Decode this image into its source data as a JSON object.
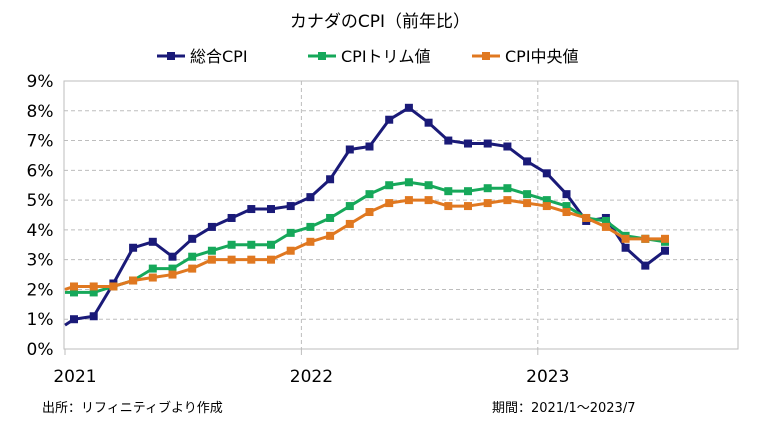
{
  "chart_data": {
    "type": "line",
    "title": "カナダのCPI（前年比）",
    "y_axis": {
      "min": 0,
      "max": 9,
      "step": 1,
      "tick_labels": [
        "0%",
        "1%",
        "2%",
        "3%",
        "4%",
        "5%",
        "6%",
        "7%",
        "8%",
        "9%"
      ]
    },
    "x_axis": {
      "tick_labels": [
        "2021",
        "2022",
        "2023"
      ]
    },
    "grid": true,
    "legend_position": "top",
    "months": [
      "2021/1",
      "2021/2",
      "2021/3",
      "2021/4",
      "2021/5",
      "2021/6",
      "2021/7",
      "2021/8",
      "2021/9",
      "2021/10",
      "2021/11",
      "2021/12",
      "2022/1",
      "2022/2",
      "2022/3",
      "2022/4",
      "2022/5",
      "2022/6",
      "2022/7",
      "2022/8",
      "2022/9",
      "2022/10",
      "2022/11",
      "2022/12",
      "2023/1",
      "2023/2",
      "2023/3",
      "2023/4",
      "2023/5",
      "2023/6",
      "2023/7"
    ],
    "series": [
      {
        "name": "総合CPI",
        "color": "#1a1a78",
        "marker": "square",
        "values": [
          1.0,
          1.1,
          2.2,
          3.4,
          3.6,
          3.1,
          3.7,
          4.1,
          4.4,
          4.7,
          4.7,
          4.8,
          5.1,
          5.7,
          6.7,
          6.8,
          7.7,
          8.1,
          7.6,
          7.0,
          6.9,
          6.9,
          6.8,
          6.3,
          5.9,
          5.2,
          4.3,
          4.4,
          3.4,
          2.8,
          3.3
        ],
        "start_value": 0.8
      },
      {
        "name": "CPIトリム値",
        "color": "#16a85a",
        "marker": "square",
        "values": [
          1.9,
          1.9,
          2.1,
          2.3,
          2.7,
          2.7,
          3.1,
          3.3,
          3.5,
          3.5,
          3.5,
          3.9,
          4.1,
          4.4,
          4.8,
          5.2,
          5.5,
          5.6,
          5.5,
          5.3,
          5.3,
          5.4,
          5.4,
          5.2,
          5.0,
          4.8,
          4.4,
          4.3,
          3.8,
          3.7,
          3.6
        ],
        "start_value": 1.9
      },
      {
        "name": "CPI中央値",
        "color": "#e07820",
        "marker": "square",
        "values": [
          2.1,
          2.1,
          2.1,
          2.3,
          2.4,
          2.5,
          2.7,
          3.0,
          3.0,
          3.0,
          3.0,
          3.3,
          3.6,
          3.8,
          4.2,
          4.6,
          4.9,
          5.0,
          5.0,
          4.8,
          4.8,
          4.9,
          5.0,
          4.9,
          4.8,
          4.6,
          4.4,
          4.1,
          3.7,
          3.7,
          3.7
        ],
        "start_value": 2.0
      }
    ]
  },
  "footer": {
    "source": "出所：リフィニティブより作成",
    "period": "期間：2021/1～2023/7"
  }
}
